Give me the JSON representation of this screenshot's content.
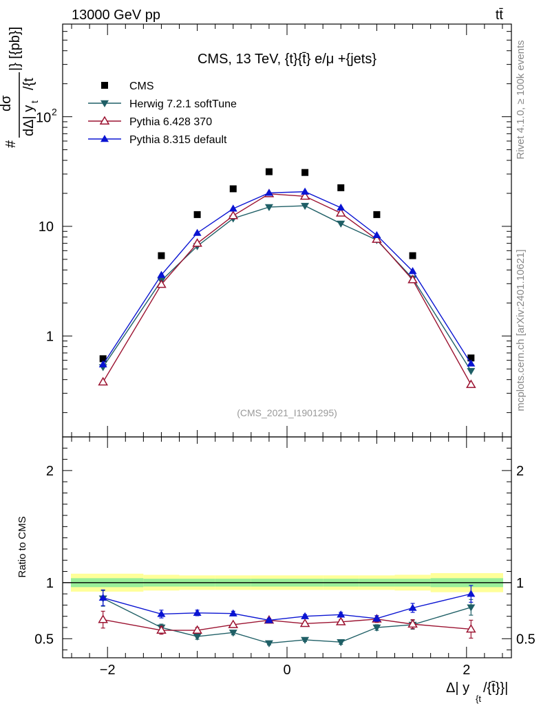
{
  "header": {
    "left": "13000 GeV pp",
    "right": "tt̄"
  },
  "side_labels": {
    "rivet": "Rivet 4.1.0, ≥ 100k events",
    "mcplots": "mcplots.cern.ch [arXiv:2401.10621]"
  },
  "chart_data": [
    {
      "type": "scatter",
      "panel": "main",
      "title": "CMS, 13 TeV, {t}{t̄} e/μ +{jets}",
      "watermark": "(CMS_2021_I1901295)",
      "ylabel_parts": [
        "#",
        "dσ",
        "dΔ| y",
        "t̄",
        "|} [{pb}]",
        "/{t",
        "t",
        "}"
      ],
      "xlabel": "Δ| y",
      "xlabel_sub": "{t",
      "xlabel_end": "/{t̄}}|",
      "yscale": "log",
      "xlim": [
        -2.5,
        2.5
      ],
      "ylim": [
        0.12,
        700
      ],
      "x_ticks": [
        -2,
        0,
        2
      ],
      "y_tick_labels": [
        {
          "value": 1,
          "label": "1"
        },
        {
          "value": 10,
          "label": "10"
        },
        {
          "value": 100,
          "label": "10",
          "exp": "2"
        }
      ],
      "x": [
        -2.05,
        -1.4,
        -1.0,
        -0.6,
        -0.2,
        0.2,
        0.6,
        1.0,
        1.4,
        2.05
      ],
      "legend_position": "top-left",
      "series": [
        {
          "name": "CMS",
          "color": "#000000",
          "marker": "square",
          "values": [
            0.62,
            5.4,
            12.8,
            22.0,
            31.5,
            31.0,
            22.5,
            12.8,
            5.4,
            0.63
          ]
        },
        {
          "name": "Herwig 7.2.1 softTune",
          "color": "#1f5f66",
          "marker": "triangle-down",
          "values": [
            0.52,
            3.2,
            6.6,
            11.8,
            15.0,
            15.4,
            10.6,
            7.5,
            3.35,
            0.48
          ]
        },
        {
          "name": "Pythia 6.428 370",
          "color": "#9b1230",
          "marker": "triangle-up-open",
          "values": [
            0.38,
            2.95,
            7.0,
            12.5,
            19.8,
            18.8,
            13.2,
            7.6,
            3.25,
            0.36
          ]
        },
        {
          "name": "Pythia 8.315 default",
          "color": "#0a14d2",
          "marker": "triangle-up",
          "values": [
            0.55,
            3.6,
            8.7,
            14.5,
            20.2,
            20.7,
            14.8,
            8.3,
            3.9,
            0.56
          ]
        }
      ]
    },
    {
      "type": "scatter",
      "panel": "ratio",
      "ylabel": "Ratio to CMS",
      "xlim": [
        -2.5,
        2.5
      ],
      "ylim": [
        0.33,
        2.3
      ],
      "x_ticks": [
        -2,
        0,
        2
      ],
      "x_tick_labels": [
        "−2",
        "0",
        "2"
      ],
      "y_ticks": [
        0.5,
        1,
        2
      ],
      "y_tick_labels": [
        "0.5",
        "1",
        "2"
      ],
      "x": [
        -2.05,
        -1.4,
        -1.0,
        -0.6,
        -0.2,
        0.2,
        0.6,
        1.0,
        1.4,
        2.05
      ],
      "band_edges": [
        -2.5,
        -1.6,
        -1.2,
        -0.8,
        -0.4,
        0.0,
        0.4,
        0.8,
        1.2,
        1.6,
        2.5
      ],
      "band_inner": [
        0.04,
        0.035,
        0.035,
        0.035,
        0.035,
        0.035,
        0.035,
        0.035,
        0.035,
        0.04
      ],
      "band_outer": [
        0.08,
        0.07,
        0.065,
        0.065,
        0.065,
        0.065,
        0.065,
        0.065,
        0.07,
        0.085
      ],
      "band_colors": {
        "outer": "#ffff99",
        "inner": "#99ee99"
      },
      "series": [
        {
          "name": "Herwig 7.2.1 softTune",
          "color": "#1f5f66",
          "marker": "triangle-down",
          "values": [
            0.86,
            0.6,
            0.52,
            0.555,
            0.46,
            0.49,
            0.47,
            0.6,
            0.625,
            0.78
          ],
          "errors": [
            0.07,
            0.03,
            0.025,
            0.02,
            0.015,
            0.015,
            0.02,
            0.025,
            0.04,
            0.07
          ]
        },
        {
          "name": "Pythia 6.428 370",
          "color": "#9b1230",
          "marker": "triangle-up-open",
          "values": [
            0.67,
            0.575,
            0.575,
            0.625,
            0.665,
            0.635,
            0.65,
            0.675,
            0.63,
            0.585
          ],
          "errors": [
            0.075,
            0.035,
            0.025,
            0.015,
            0.015,
            0.015,
            0.02,
            0.03,
            0.04,
            0.08
          ]
        },
        {
          "name": "Pythia 8.315 default",
          "color": "#0a14d2",
          "marker": "triangle-up",
          "values": [
            0.865,
            0.72,
            0.73,
            0.725,
            0.665,
            0.7,
            0.715,
            0.68,
            0.775,
            0.9
          ],
          "errors": [
            0.07,
            0.035,
            0.025,
            0.02,
            0.015,
            0.015,
            0.02,
            0.025,
            0.04,
            0.075
          ]
        }
      ]
    }
  ]
}
